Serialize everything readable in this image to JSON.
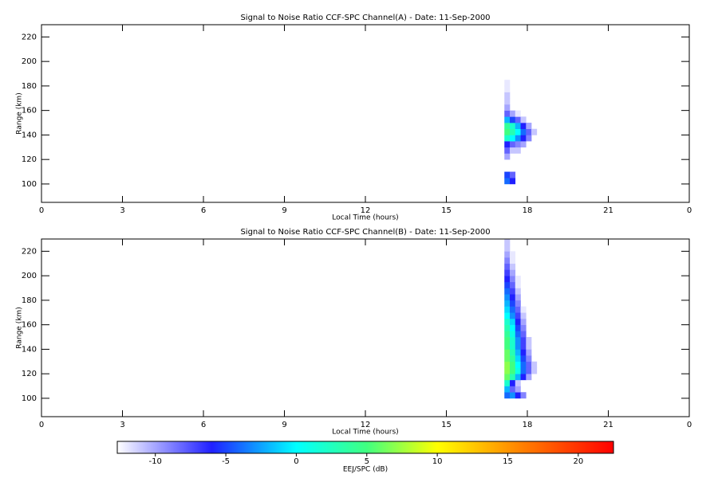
{
  "chart_data": [
    {
      "type": "heatmap",
      "title": "Signal to Noise Ratio CCF-SPC Channel(A) - Date: 11-Sep-2000",
      "xlabel": "Local Time (hours)",
      "ylabel": "Range (km)",
      "xlim": [
        0,
        24
      ],
      "xticks": [
        0,
        3,
        6,
        9,
        12,
        15,
        18,
        21,
        {
          "value": 24,
          "label": "0"
        }
      ],
      "ylim": [
        85,
        230
      ],
      "yticks": [
        100,
        120,
        140,
        160,
        180,
        200,
        220
      ],
      "x": [
        17.25,
        17.45,
        17.65,
        17.85,
        18.05,
        18.25
      ],
      "y": [
        102.5,
        107.5,
        112.5,
        117.5,
        122.5,
        127.5,
        132.5,
        137.5,
        142.5,
        147.5,
        152.5,
        157.5,
        162.5,
        167.5,
        172.5,
        177.5,
        182.5
      ],
      "z": [
        [
          -4,
          -6,
          null,
          null,
          null,
          null
        ],
        [
          -5,
          -8,
          null,
          null,
          null,
          null
        ],
        [
          null,
          null,
          null,
          null,
          null,
          null
        ],
        [
          null,
          null,
          null,
          null,
          null,
          null
        ],
        [
          -10,
          null,
          null,
          null,
          null,
          null
        ],
        [
          -8,
          -11,
          -11,
          null,
          null,
          null
        ],
        [
          -6,
          -8,
          -9,
          -10,
          null,
          null
        ],
        [
          2,
          0,
          -3,
          -6,
          -9,
          null
        ],
        [
          5,
          3,
          0,
          -4,
          -8,
          -11
        ],
        [
          4,
          2,
          -2,
          -6,
          -10,
          null
        ],
        [
          -2,
          -5,
          -8,
          -11,
          null,
          null
        ],
        [
          -8,
          -10,
          -12,
          null,
          null,
          null
        ],
        [
          -10,
          null,
          null,
          null,
          null,
          null
        ],
        [
          -11,
          null,
          null,
          null,
          null,
          null
        ],
        [
          -11,
          null,
          null,
          null,
          null,
          null
        ],
        [
          -12,
          null,
          null,
          null,
          null,
          null
        ],
        [
          -12,
          null,
          null,
          null,
          null,
          null
        ]
      ]
    },
    {
      "type": "heatmap",
      "title": "Signal to Noise Ratio CCF-SPC Channel(B) - Date: 11-Sep-2000",
      "xlabel": "Local Time (hours)",
      "ylabel": "Range (km)",
      "xlim": [
        0,
        24
      ],
      "xticks": [
        0,
        3,
        6,
        9,
        12,
        15,
        18,
        21,
        {
          "value": 24,
          "label": "0"
        }
      ],
      "ylim": [
        85,
        230
      ],
      "yticks": [
        100,
        120,
        140,
        160,
        180,
        200,
        220
      ],
      "x": [
        17.25,
        17.45,
        17.65,
        17.85,
        18.05,
        18.25,
        18.45
      ],
      "y": [
        102.5,
        107.5,
        112.5,
        117.5,
        122.5,
        127.5,
        132.5,
        137.5,
        142.5,
        147.5,
        152.5,
        157.5,
        162.5,
        167.5,
        172.5,
        177.5,
        182.5,
        187.5,
        192.5,
        197.5,
        202.5,
        207.5,
        212.5,
        217.5,
        222.5,
        227.5
      ],
      "z": [
        [
          -4,
          -3,
          -6,
          -9,
          null,
          null,
          null
        ],
        [
          -2,
          -8,
          -10,
          null,
          null,
          null,
          null
        ],
        [
          2,
          -6,
          -11,
          null,
          null,
          null,
          null
        ],
        [
          6,
          3,
          -2,
          -6,
          -10,
          null,
          null
        ],
        [
          7,
          5,
          1,
          -4,
          -8,
          -11,
          null
        ],
        [
          7,
          5,
          0,
          -4,
          -8,
          -11,
          null
        ],
        [
          6,
          4,
          -1,
          -5,
          -9,
          null,
          null
        ],
        [
          6,
          3,
          -2,
          -6,
          -10,
          null,
          null
        ],
        [
          5,
          2,
          -3,
          -7,
          -11,
          null,
          null
        ],
        [
          5,
          2,
          -3,
          -7,
          -11,
          null,
          null
        ],
        [
          4,
          1,
          -4,
          -8,
          null,
          null,
          null
        ],
        [
          3,
          0,
          -5,
          -9,
          null,
          null,
          null
        ],
        [
          2,
          -1,
          -6,
          -10,
          null,
          null,
          null
        ],
        [
          0,
          -3,
          -7,
          -11,
          null,
          null,
          null
        ],
        [
          -1,
          -4,
          -8,
          -12,
          null,
          null,
          null
        ],
        [
          -2,
          -5,
          -9,
          null,
          null,
          null,
          null
        ],
        [
          -3,
          -6,
          -10,
          null,
          null,
          null,
          null
        ],
        [
          -4,
          -7,
          -11,
          null,
          null,
          null,
          null
        ],
        [
          -5,
          -8,
          -12,
          null,
          null,
          null,
          null
        ],
        [
          -6,
          -9,
          -12,
          null,
          null,
          null,
          null
        ],
        [
          -7,
          -10,
          null,
          null,
          null,
          null,
          null
        ],
        [
          -8,
          -11,
          null,
          null,
          null,
          null,
          null
        ],
        [
          -9,
          -12,
          null,
          null,
          null,
          null,
          null
        ],
        [
          -10,
          -12,
          null,
          null,
          null,
          null,
          null
        ],
        [
          -11,
          null,
          null,
          null,
          null,
          null,
          null
        ],
        [
          -11,
          null,
          null,
          null,
          null,
          null,
          null
        ]
      ]
    },
    {
      "type": "colorbar",
      "label": "EEJ/SPC (dB)",
      "clim": [
        -12.7,
        22.5
      ],
      "ticks": [
        -10,
        -5,
        0,
        5,
        10,
        15,
        20
      ],
      "colorscale": [
        [
          -12.7,
          "#ffffff"
        ],
        [
          -6,
          "#2020ff"
        ],
        [
          0,
          "#00ffff"
        ],
        [
          5,
          "#40ff80"
        ],
        [
          10,
          "#ffff00"
        ],
        [
          16,
          "#ff8000"
        ],
        [
          22.5,
          "#ff0000"
        ]
      ]
    }
  ]
}
